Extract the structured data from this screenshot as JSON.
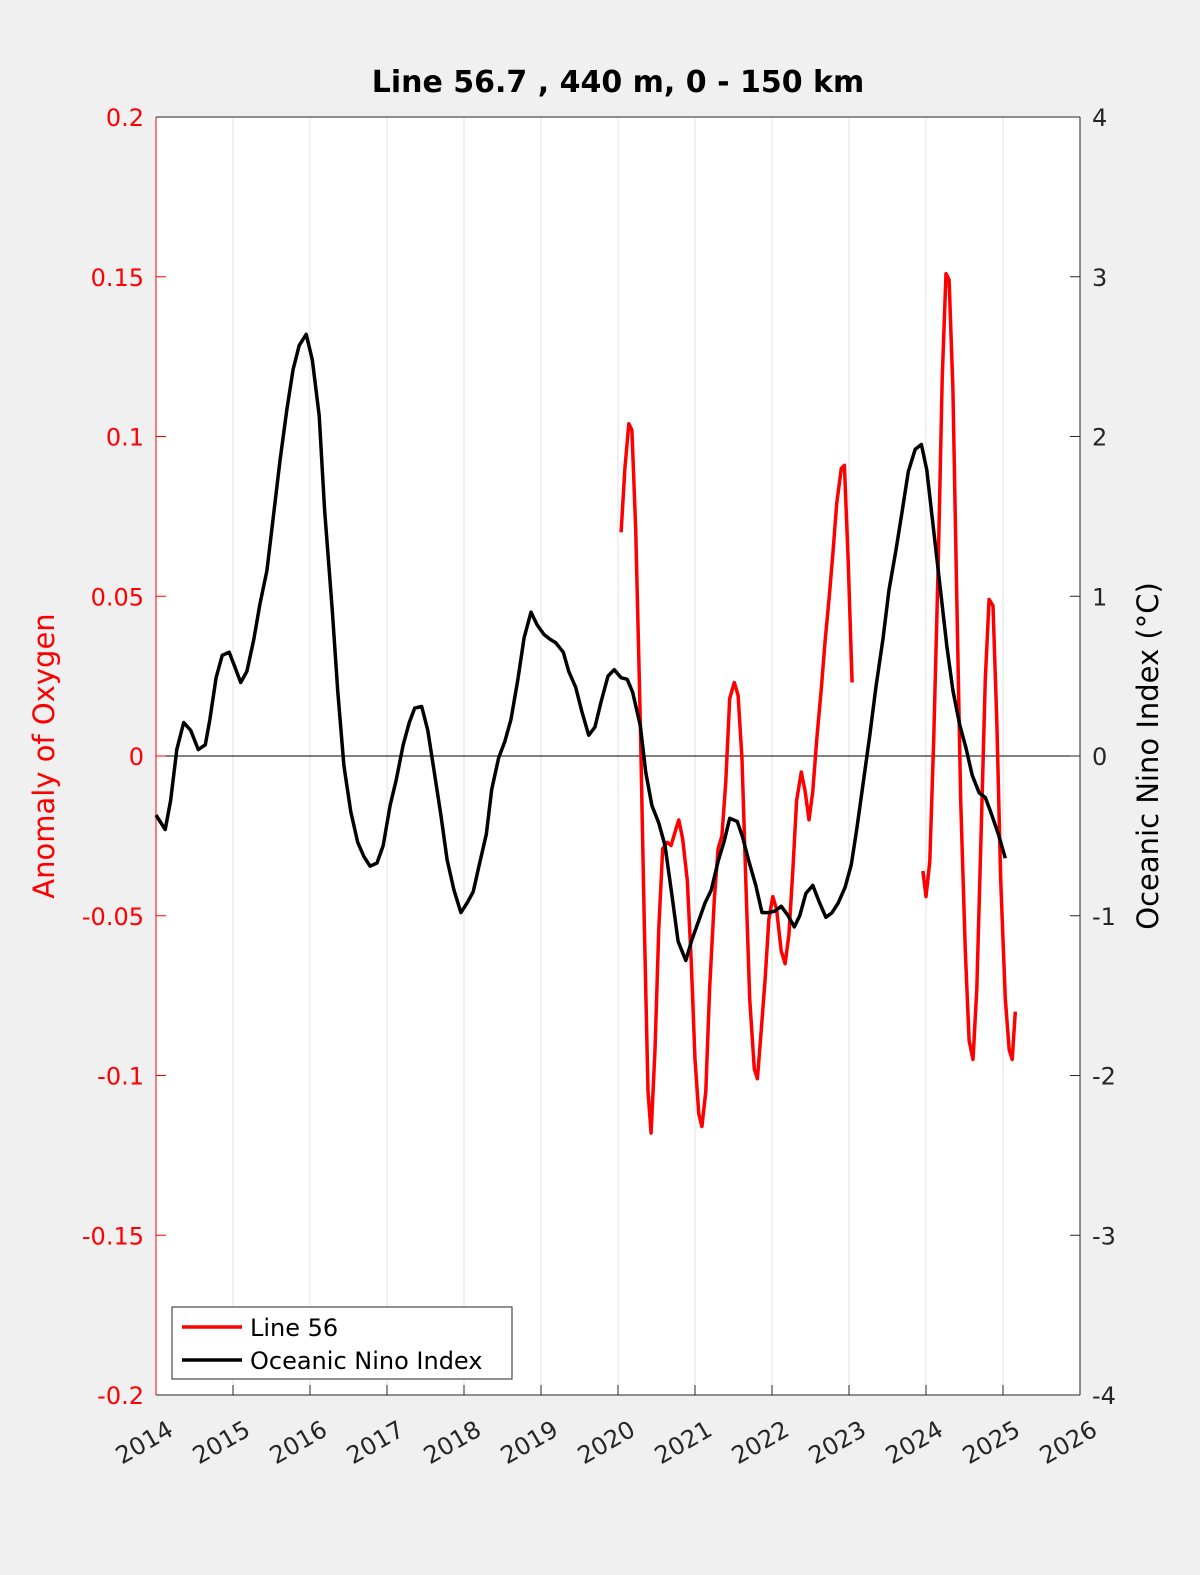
{
  "chart_data": {
    "type": "line",
    "title": "Line 56.7 , 440 m, 0 - 150 km",
    "ylabel": "Anomaly of Oxygen",
    "y2label": "Oceanic Nino Index (°C)",
    "xlim": [
      2014,
      2026
    ],
    "xticks": [
      2014,
      2015,
      2016,
      2017,
      2018,
      2019,
      2020,
      2021,
      2022,
      2023,
      2024,
      2025,
      2026
    ],
    "ylim": [
      -0.2,
      0.2
    ],
    "yticks": [
      -0.2,
      -0.15,
      -0.1,
      -0.05,
      0,
      0.05,
      0.1,
      0.15,
      0.2
    ],
    "y2lim": [
      -4,
      4
    ],
    "y2ticks": [
      -4,
      -3,
      -2,
      -1,
      0,
      1,
      2,
      3,
      4
    ],
    "ycolor": "#ff0000",
    "xgrid": true,
    "hlines": [
      0
    ],
    "legend": "lower left",
    "series": [
      {
        "name": "Line 56",
        "color": "#ff0000",
        "x": [
          2020.04,
          2020.09,
          2020.14,
          2020.18,
          2020.23,
          2020.29,
          2020.34,
          2020.39,
          2020.43,
          2020.48,
          2020.53,
          2020.58,
          2020.64,
          2020.69,
          2020.75,
          2020.79,
          2020.84,
          2020.9,
          2020.95,
          2021.0,
          2021.05,
          2021.09,
          2021.14,
          2021.19,
          2021.25,
          2021.3,
          2021.35,
          2021.4,
          2021.45,
          2021.51,
          2021.56,
          2021.61,
          2021.66,
          2021.71,
          2021.77,
          2021.81,
          2021.86,
          2021.91,
          2021.96,
          2022.01,
          2022.06,
          2022.12,
          2022.17,
          2022.22,
          2022.27,
          2022.32,
          2022.38,
          2022.43,
          2022.48,
          2022.53,
          2022.58,
          2022.64,
          2022.69,
          2022.74,
          2022.79,
          2022.84,
          2022.9,
          2022.94,
          2022.99,
          2023.04,
          2023.5,
          2023.96,
          2024.0,
          2024.05,
          2024.1,
          2024.16,
          2024.21,
          2024.26,
          2024.3,
          2024.35,
          2024.4,
          2024.45,
          2024.51,
          2024.56,
          2024.61,
          2024.66,
          2024.71,
          2024.77,
          2024.82,
          2024.87,
          2024.92,
          2024.97,
          2025.03,
          2025.08,
          2025.12,
          2025.16
        ],
        "values": [
          0.07,
          0.09,
          0.104,
          0.102,
          0.071,
          0.011,
          -0.051,
          -0.105,
          -0.118,
          -0.092,
          -0.054,
          -0.029,
          -0.027,
          -0.028,
          -0.023,
          -0.02,
          -0.026,
          -0.039,
          -0.064,
          -0.095,
          -0.112,
          -0.116,
          -0.105,
          -0.073,
          -0.045,
          -0.029,
          -0.025,
          -0.008,
          0.018,
          0.023,
          0.019,
          -0.001,
          -0.039,
          -0.076,
          -0.098,
          -0.101,
          -0.086,
          -0.07,
          -0.051,
          -0.044,
          -0.048,
          -0.061,
          -0.065,
          -0.056,
          -0.036,
          -0.014,
          -0.005,
          -0.011,
          -0.02,
          -0.011,
          0.005,
          0.021,
          0.036,
          0.049,
          0.063,
          0.079,
          0.09,
          0.091,
          0.061,
          0.023,
          null,
          -0.036,
          -0.044,
          -0.033,
          0.005,
          0.061,
          0.118,
          0.151,
          0.149,
          0.115,
          0.049,
          -0.014,
          -0.061,
          -0.089,
          -0.095,
          -0.073,
          -0.029,
          0.024,
          0.049,
          0.047,
          0.011,
          -0.039,
          -0.076,
          -0.092,
          -0.095,
          -0.08
        ]
      },
      {
        "name": "Oceanic Nino Index",
        "color": "#000000",
        "axis": "y2",
        "x": [
          2014.0,
          2014.12,
          2014.19,
          2014.27,
          2014.36,
          2014.45,
          2014.55,
          2014.64,
          2014.7,
          2014.78,
          2014.86,
          2014.95,
          2015.03,
          2015.1,
          2015.18,
          2015.27,
          2015.35,
          2015.44,
          2015.52,
          2015.61,
          2015.7,
          2015.78,
          2015.86,
          2015.95,
          2016.03,
          2016.12,
          2016.19,
          2016.29,
          2016.36,
          2016.44,
          2016.53,
          2016.62,
          2016.7,
          2016.78,
          2016.87,
          2016.95,
          2017.04,
          2017.12,
          2017.21,
          2017.29,
          2017.36,
          2017.45,
          2017.53,
          2017.61,
          2017.7,
          2017.78,
          2017.87,
          2017.96,
          2018.04,
          2018.12,
          2018.19,
          2018.29,
          2018.36,
          2018.45,
          2018.53,
          2018.61,
          2018.7,
          2018.78,
          2018.87,
          2018.95,
          2019.04,
          2019.12,
          2019.19,
          2019.29,
          2019.36,
          2019.45,
          2019.53,
          2019.62,
          2019.7,
          2019.78,
          2019.87,
          2019.95,
          2020.04,
          2020.12,
          2020.19,
          2020.29,
          2020.36,
          2020.44,
          2020.53,
          2020.61,
          2020.7,
          2020.78,
          2020.88,
          2020.96,
          2021.05,
          2021.13,
          2021.21,
          2021.3,
          2021.38,
          2021.45,
          2021.55,
          2021.62,
          2021.7,
          2021.79,
          2021.87,
          2021.96,
          2022.04,
          2022.12,
          2022.21,
          2022.29,
          2022.36,
          2022.44,
          2022.53,
          2022.61,
          2022.7,
          2022.78,
          2022.86,
          2022.95,
          2023.03,
          2023.1,
          2023.19,
          2023.27,
          2023.35,
          2023.44,
          2023.52,
          2023.61,
          2023.69,
          2023.77,
          2023.86,
          2023.94,
          2024.01,
          2024.1,
          2024.18,
          2024.27,
          2024.35,
          2024.44,
          2024.52,
          2024.6,
          2024.69,
          2024.77,
          2024.84,
          2024.94,
          2025.03
        ],
        "values": [
          -0.37,
          -0.46,
          -0.28,
          0.04,
          0.21,
          0.16,
          0.04,
          0.07,
          0.23,
          0.49,
          0.63,
          0.65,
          0.55,
          0.46,
          0.53,
          0.73,
          0.95,
          1.16,
          1.48,
          1.85,
          2.17,
          2.42,
          2.57,
          2.64,
          2.48,
          2.13,
          1.54,
          0.91,
          0.41,
          -0.06,
          -0.35,
          -0.54,
          -0.63,
          -0.69,
          -0.67,
          -0.56,
          -0.31,
          -0.15,
          0.07,
          0.21,
          0.3,
          0.31,
          0.16,
          -0.09,
          -0.37,
          -0.65,
          -0.84,
          -0.98,
          -0.92,
          -0.85,
          -0.7,
          -0.49,
          -0.21,
          -0.01,
          0.09,
          0.23,
          0.48,
          0.74,
          0.9,
          0.82,
          0.76,
          0.73,
          0.71,
          0.65,
          0.53,
          0.43,
          0.28,
          0.13,
          0.18,
          0.34,
          0.5,
          0.54,
          0.49,
          0.48,
          0.4,
          0.19,
          -0.1,
          -0.31,
          -0.42,
          -0.56,
          -0.87,
          -1.16,
          -1.28,
          -1.15,
          -1.03,
          -0.92,
          -0.84,
          -0.66,
          -0.53,
          -0.39,
          -0.41,
          -0.51,
          -0.66,
          -0.81,
          -0.98,
          -0.98,
          -0.97,
          -0.94,
          -1.0,
          -1.07,
          -1.0,
          -0.86,
          -0.81,
          -0.91,
          -1.01,
          -0.98,
          -0.92,
          -0.82,
          -0.68,
          -0.46,
          -0.15,
          0.13,
          0.43,
          0.73,
          1.04,
          1.29,
          1.53,
          1.78,
          1.92,
          1.95,
          1.79,
          1.41,
          1.07,
          0.69,
          0.41,
          0.19,
          0.05,
          -0.12,
          -0.23,
          -0.26,
          -0.35,
          -0.49,
          -0.64
        ]
      }
    ]
  }
}
